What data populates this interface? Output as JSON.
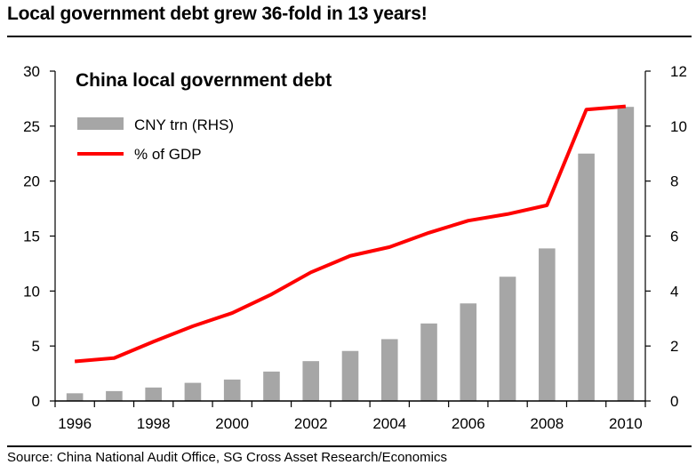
{
  "headline": "Local government debt grew 36-fold in 13 years!",
  "source": "Source: China National Audit Office, SG Cross Asset Research/Economics",
  "chart_data": {
    "type": "bar",
    "title": "China local government debt",
    "x": [
      1996,
      1997,
      1998,
      1999,
      2000,
      2001,
      2002,
      2003,
      2004,
      2005,
      2006,
      2007,
      2008,
      2009,
      2010
    ],
    "x_tick_labels": [
      "1996",
      "1998",
      "2000",
      "2002",
      "2004",
      "2006",
      "2008",
      "2010"
    ],
    "x_tick_values": [
      1996,
      1998,
      2000,
      2002,
      2004,
      2006,
      2008,
      2010
    ],
    "y_left": {
      "lim": [
        0,
        30
      ],
      "ticks": [
        "0",
        "5",
        "10",
        "15",
        "20",
        "25",
        "30"
      ]
    },
    "y_right": {
      "lim": [
        0,
        12
      ],
      "ticks": [
        "0",
        "2",
        "4",
        "6",
        "8",
        "10",
        "12"
      ]
    },
    "series": [
      {
        "name": "CNY trn (RHS)",
        "type": "bar",
        "axis": "right",
        "color": "#a6a6a6",
        "values": [
          0.28,
          0.36,
          0.49,
          0.66,
          0.78,
          1.07,
          1.45,
          1.82,
          2.25,
          2.82,
          3.55,
          4.52,
          5.55,
          9.0,
          10.7
        ]
      },
      {
        "name": "% of GDP",
        "type": "line",
        "axis": "left",
        "color": "#ff0000",
        "values": [
          3.6,
          3.9,
          5.4,
          6.8,
          8.0,
          9.7,
          11.7,
          13.2,
          14.0,
          15.3,
          16.4,
          17.0,
          17.8,
          26.5,
          26.8
        ]
      }
    ],
    "legend": "top-left",
    "grid": false
  }
}
